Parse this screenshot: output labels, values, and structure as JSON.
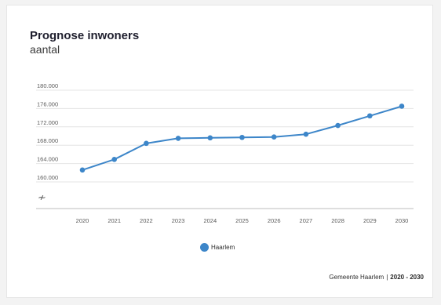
{
  "chart_data": {
    "type": "line",
    "title": "Prognose inwoners",
    "subtitle": "aantal",
    "x": [
      "2020",
      "2021",
      "2022",
      "2023",
      "2024",
      "2025",
      "2026",
      "2027",
      "2028",
      "2029",
      "2030"
    ],
    "series": [
      {
        "name": "Haarlem",
        "color": "#3d86c9",
        "values": [
          162600,
          164900,
          168400,
          169500,
          169600,
          169700,
          169800,
          170400,
          172300,
          174400,
          176500
        ]
      }
    ],
    "yticks": [
      "180.000",
      "176.000",
      "172.000",
      "168.000",
      "164.000",
      "160.000"
    ],
    "ylim": [
      160000,
      180000
    ],
    "axis_break_symbol": "≁",
    "grid": true,
    "legend_position": "bottom-center"
  },
  "footer": {
    "source": "Gemeente Haarlem",
    "separator": "|",
    "years": "2020 - 2030"
  }
}
